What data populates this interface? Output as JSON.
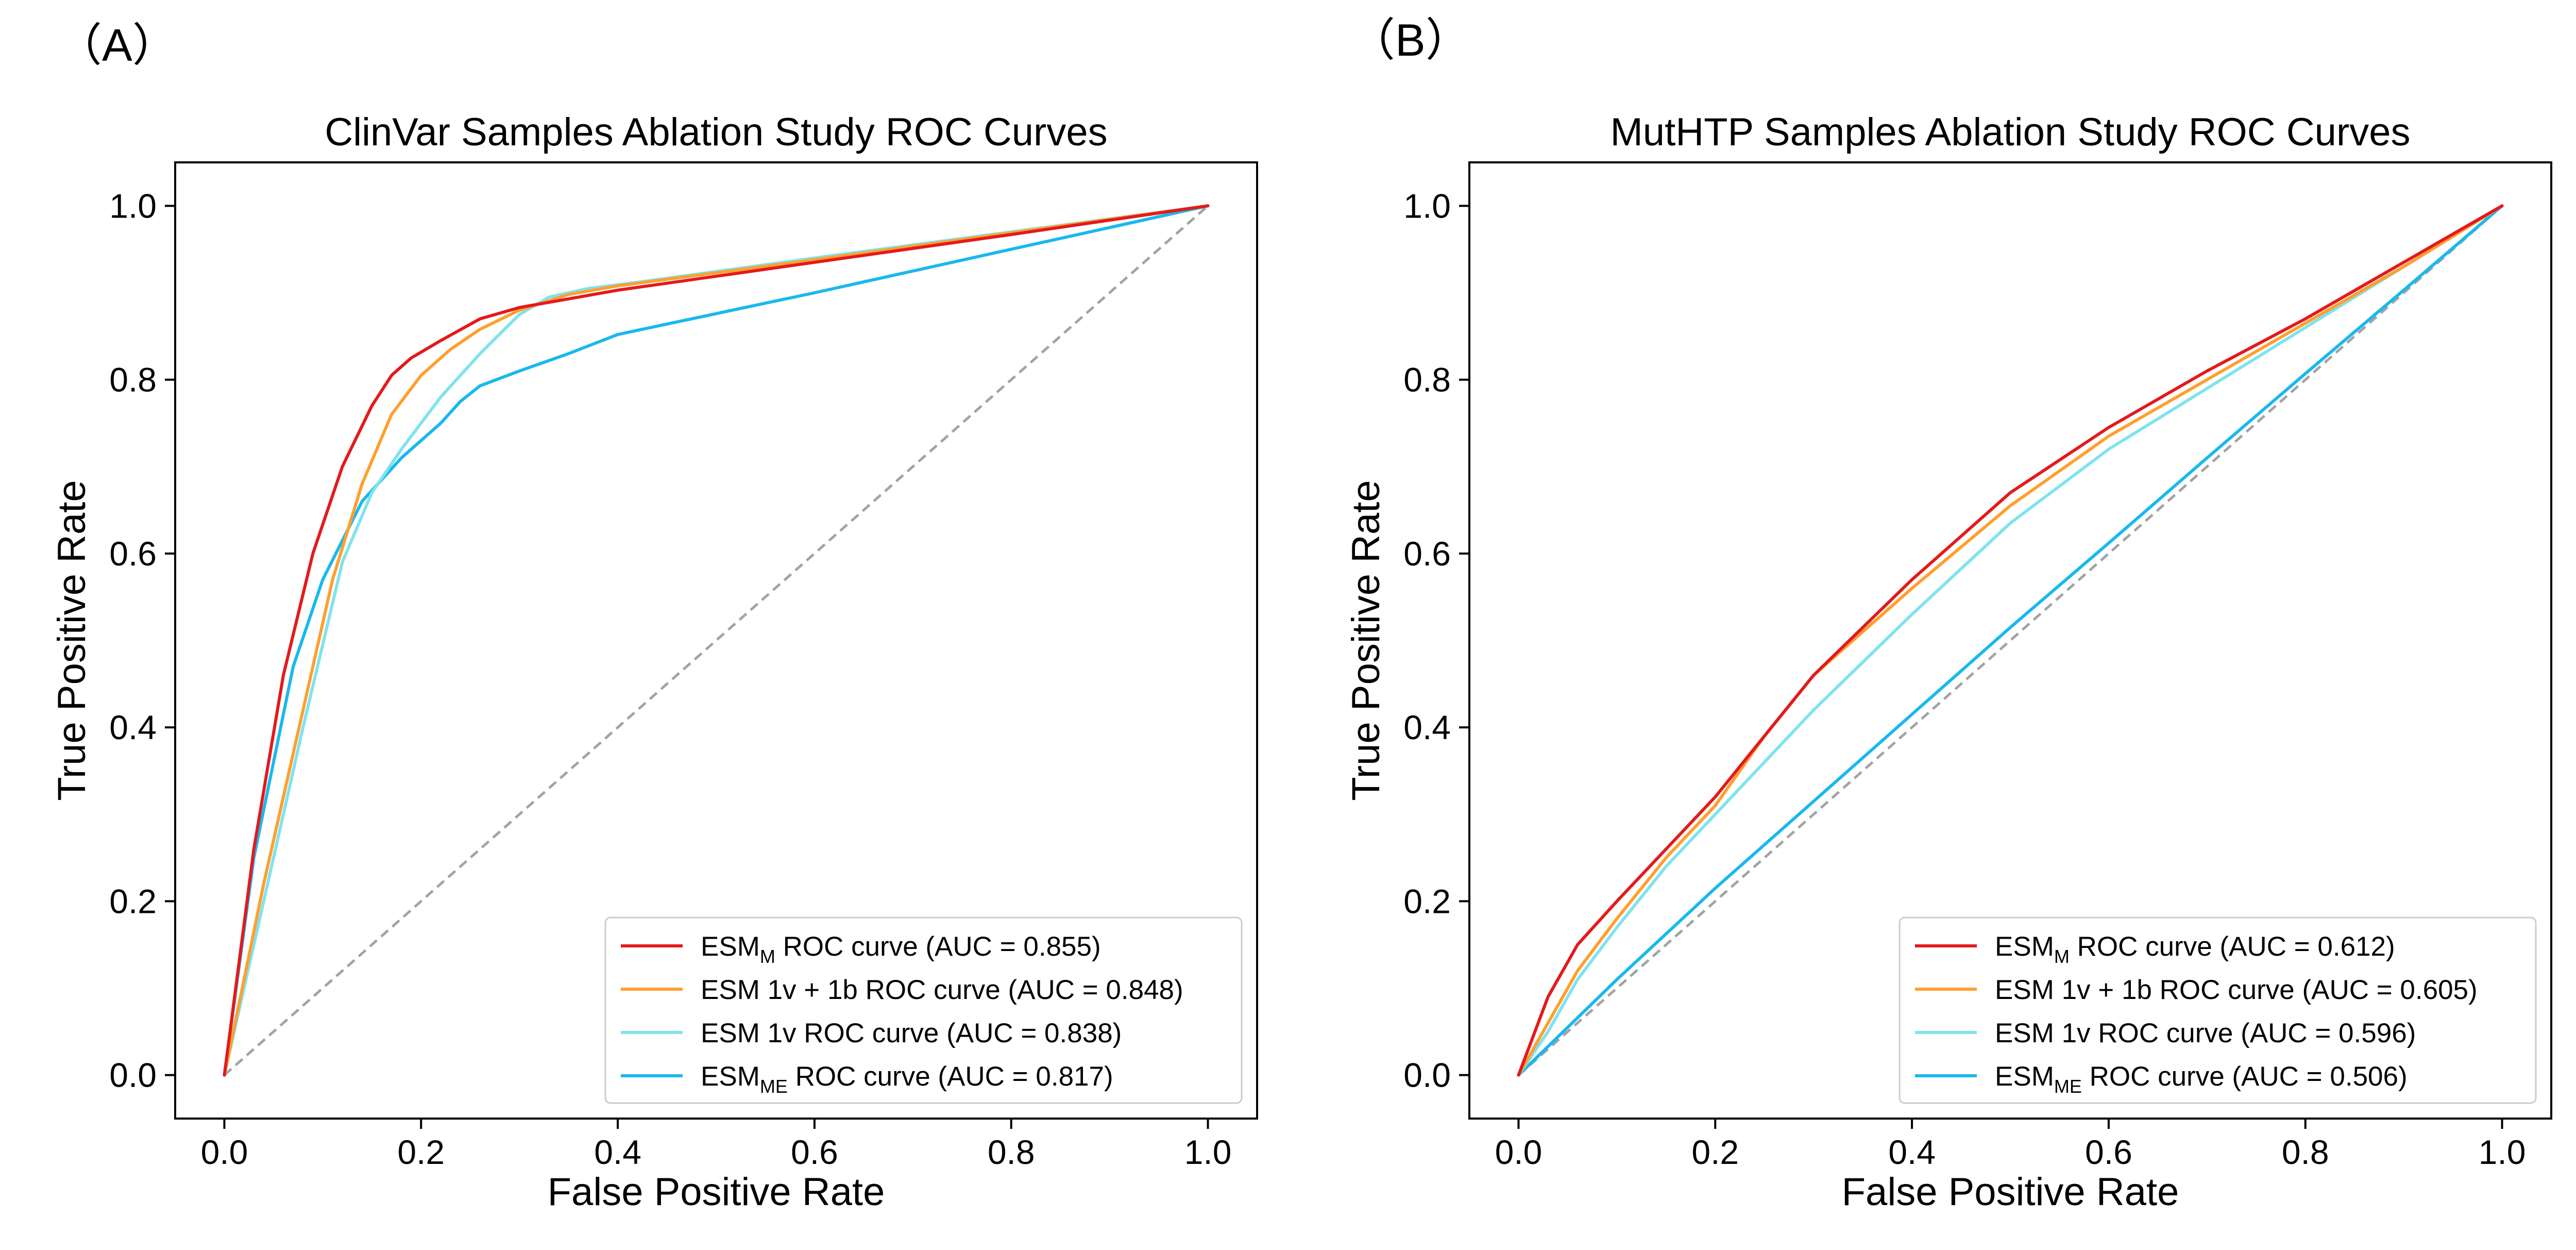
{
  "colors": {
    "esm_m": "#e31a1c",
    "esm_1v_1b": "#ff9f2e",
    "esm_1v": "#7fe3ee",
    "esm_me": "#19b8ee",
    "diagonal": "#a3a3a3"
  },
  "chart_data": [
    {
      "type": "line",
      "panel_letter": "（A）",
      "title": "ClinVar Samples Ablation Study ROC Curves",
      "xlabel": "False Positive Rate",
      "ylabel": "True Positive Rate",
      "xlim": [
        -0.05,
        1.05
      ],
      "ylim": [
        -0.05,
        1.05
      ],
      "xticks": [
        "0.0",
        "0.2",
        "0.4",
        "0.6",
        "0.8",
        "1.0"
      ],
      "yticks": [
        "0.0",
        "0.2",
        "0.4",
        "0.6",
        "0.8",
        "1.0"
      ],
      "grid": false,
      "legend_position": "lower right",
      "reference_line": {
        "x": [
          0,
          1
        ],
        "y": [
          0,
          1
        ],
        "style": "dashed"
      },
      "series": [
        {
          "key": "esm_m",
          "legend_main": "ESM",
          "legend_sub": "M",
          "legend_rest": " ROC curve (AUC = 0.855)",
          "x": [
            0,
            0.03,
            0.06,
            0.09,
            0.12,
            0.15,
            0.17,
            0.19,
            0.22,
            0.26,
            0.3,
            0.35,
            0.4,
            0.6,
            0.8,
            1.0
          ],
          "y": [
            0,
            0.26,
            0.46,
            0.6,
            0.7,
            0.77,
            0.805,
            0.825,
            0.845,
            0.87,
            0.883,
            0.893,
            0.903,
            0.935,
            0.967,
            1.0
          ]
        },
        {
          "key": "esm_1v_1b",
          "legend_main": "ESM 1v + 1b ROC curve (AUC = 0.848)",
          "legend_sub": "",
          "legend_rest": "",
          "x": [
            0,
            0.04,
            0.08,
            0.11,
            0.14,
            0.17,
            0.2,
            0.23,
            0.26,
            0.3,
            0.35,
            0.4,
            0.6,
            0.8,
            1.0
          ],
          "y": [
            0,
            0.22,
            0.42,
            0.57,
            0.68,
            0.76,
            0.805,
            0.835,
            0.858,
            0.88,
            0.898,
            0.908,
            0.938,
            0.969,
            1.0
          ]
        },
        {
          "key": "esm_1v",
          "legend_main": "ESM 1v ROC curve (AUC = 0.838)",
          "legend_sub": "",
          "legend_rest": "",
          "x": [
            0,
            0.04,
            0.08,
            0.12,
            0.15,
            0.18,
            0.22,
            0.26,
            0.3,
            0.33,
            0.37,
            0.42,
            0.6,
            0.8,
            1.0
          ],
          "y": [
            0,
            0.2,
            0.4,
            0.59,
            0.67,
            0.72,
            0.78,
            0.83,
            0.875,
            0.895,
            0.905,
            0.912,
            0.94,
            0.97,
            1.0
          ]
        },
        {
          "key": "esm_me",
          "legend_main": "ESM",
          "legend_sub": "ME",
          "legend_rest": " ROC curve (AUC = 0.817)",
          "x": [
            0,
            0.03,
            0.07,
            0.1,
            0.14,
            0.18,
            0.22,
            0.24,
            0.26,
            0.3,
            0.35,
            0.4,
            0.6,
            0.8,
            1.0
          ],
          "y": [
            0,
            0.25,
            0.47,
            0.57,
            0.66,
            0.71,
            0.75,
            0.775,
            0.793,
            0.81,
            0.83,
            0.852,
            0.9,
            0.95,
            1.0
          ]
        }
      ]
    },
    {
      "type": "line",
      "panel_letter": "（B）",
      "title": "MutHTP Samples Ablation Study ROC Curves",
      "xlabel": "False Positive Rate",
      "ylabel": "True Positive Rate",
      "xlim": [
        -0.05,
        1.05
      ],
      "ylim": [
        -0.05,
        1.05
      ],
      "xticks": [
        "0.0",
        "0.2",
        "0.4",
        "0.6",
        "0.8",
        "1.0"
      ],
      "yticks": [
        "0.0",
        "0.2",
        "0.4",
        "0.6",
        "0.8",
        "1.0"
      ],
      "grid": false,
      "legend_position": "lower right",
      "reference_line": {
        "x": [
          0,
          1
        ],
        "y": [
          0,
          1
        ],
        "style": "dashed"
      },
      "series": [
        {
          "key": "esm_m",
          "legend_main": "ESM",
          "legend_sub": "M",
          "legend_rest": " ROC curve (AUC = 0.612)",
          "x": [
            0,
            0.03,
            0.06,
            0.1,
            0.15,
            0.2,
            0.25,
            0.3,
            0.4,
            0.5,
            0.6,
            0.7,
            0.8,
            0.9,
            1.0
          ],
          "y": [
            0,
            0.09,
            0.15,
            0.2,
            0.26,
            0.32,
            0.39,
            0.46,
            0.57,
            0.67,
            0.745,
            0.81,
            0.87,
            0.935,
            1.0
          ]
        },
        {
          "key": "esm_1v_1b",
          "legend_main": "ESM 1v + 1b ROC curve (AUC = 0.605)",
          "legend_sub": "",
          "legend_rest": "",
          "x": [
            0,
            0.03,
            0.06,
            0.1,
            0.15,
            0.2,
            0.25,
            0.3,
            0.4,
            0.5,
            0.6,
            0.7,
            0.8,
            0.9,
            1.0
          ],
          "y": [
            0,
            0.06,
            0.12,
            0.18,
            0.25,
            0.31,
            0.39,
            0.46,
            0.56,
            0.655,
            0.735,
            0.8,
            0.865,
            0.93,
            1.0
          ]
        },
        {
          "key": "esm_1v",
          "legend_main": "ESM 1v ROC curve (AUC = 0.596)",
          "legend_sub": "",
          "legend_rest": "",
          "x": [
            0,
            0.03,
            0.06,
            0.1,
            0.15,
            0.2,
            0.25,
            0.3,
            0.4,
            0.5,
            0.6,
            0.7,
            0.8,
            0.9,
            1.0
          ],
          "y": [
            0,
            0.05,
            0.11,
            0.17,
            0.24,
            0.3,
            0.36,
            0.42,
            0.53,
            0.635,
            0.72,
            0.79,
            0.86,
            0.93,
            1.0
          ]
        },
        {
          "key": "esm_me",
          "legend_main": "ESM",
          "legend_sub": "ME",
          "legend_rest": " ROC curve (AUC = 0.506)",
          "x": [
            0,
            0.1,
            0.2,
            0.3,
            0.4,
            0.5,
            0.6,
            0.7,
            0.8,
            0.9,
            1.0
          ],
          "y": [
            0,
            0.11,
            0.215,
            0.315,
            0.415,
            0.515,
            0.612,
            0.71,
            0.807,
            0.903,
            1.0
          ]
        }
      ]
    }
  ]
}
